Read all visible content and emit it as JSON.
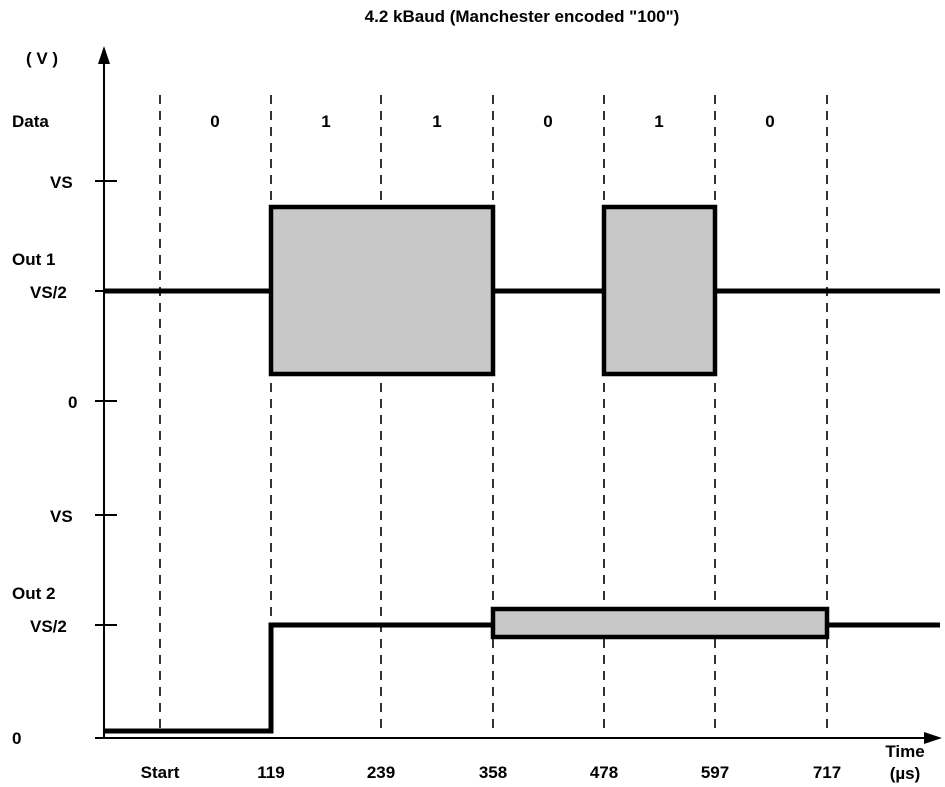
{
  "title": "4.2 kBaud (Manchester encoded \"100\")",
  "y_axis_label": "( V )",
  "x_axis_label": [
    "Time",
    "(µs)"
  ],
  "data_row_label": "Data",
  "data_bits": [
    "0",
    "1",
    "1",
    "0",
    "1",
    "0"
  ],
  "time_ticks": [
    "Start",
    "119",
    "239",
    "358",
    "478",
    "597",
    "717"
  ],
  "out1": {
    "label": "Out 1",
    "levels": [
      "VS",
      "VS/2",
      "0"
    ],
    "shaded_intervals": [
      [
        "119",
        "358"
      ],
      [
        "478",
        "597"
      ]
    ]
  },
  "out2": {
    "label": "Out 2",
    "levels": [
      "VS",
      "VS/2",
      "0"
    ],
    "step_at": "119",
    "shaded_interval": [
      "358",
      "717"
    ]
  },
  "colors": {
    "line": "#000000",
    "shade": "#c8c8c8",
    "background": "#ffffff"
  }
}
